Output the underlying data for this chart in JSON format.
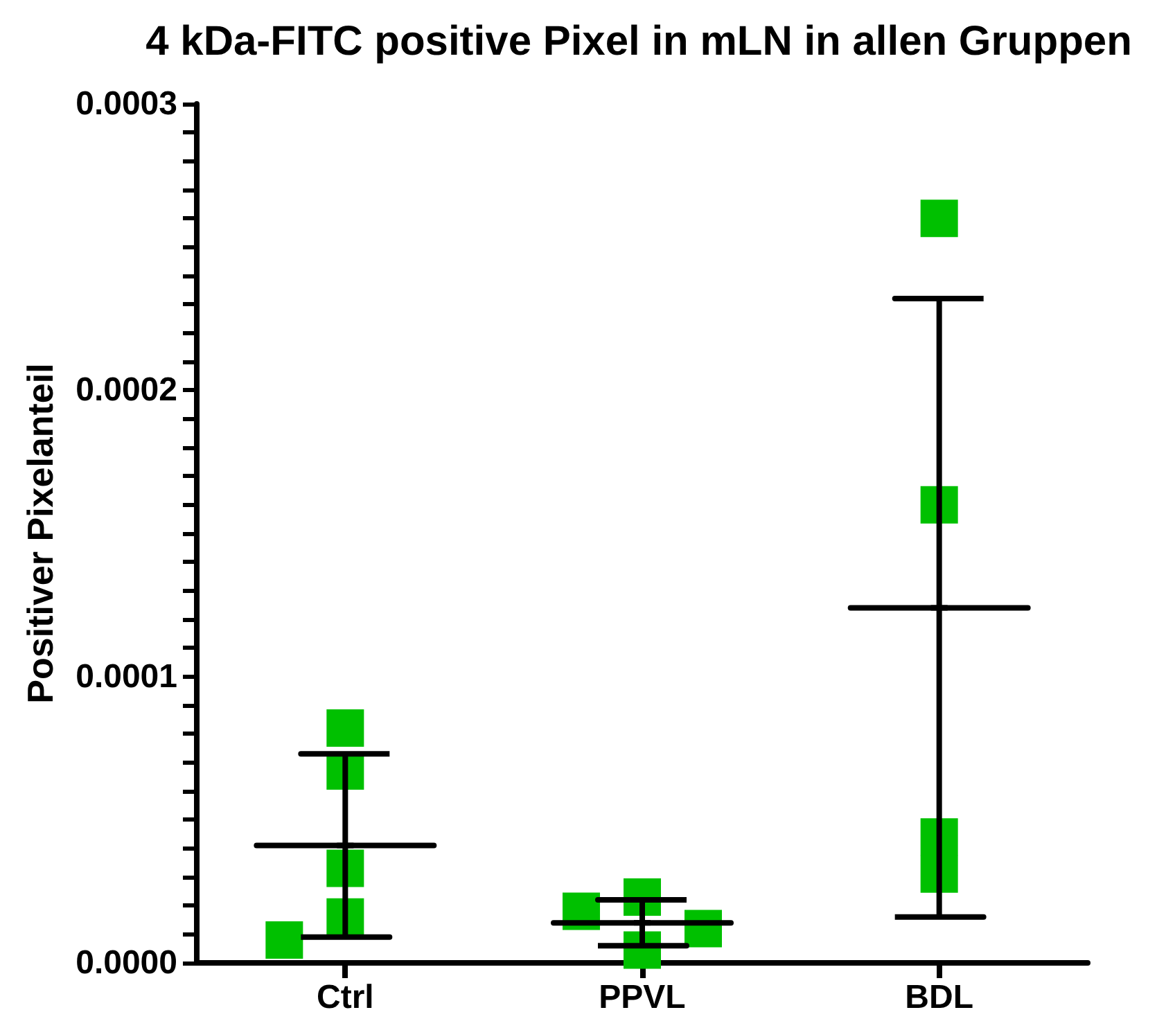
{
  "chart_data": {
    "type": "scatter",
    "title": "4 kDa-FITC positive Pixel in mLN in allen Gruppen",
    "ylabel": "Positiver Pixelanteil",
    "categories": [
      "Ctrl",
      "PPVL",
      "BDL"
    ],
    "series": [
      {
        "color": "#00c000",
        "marker": "square",
        "x": [
          "Ctrl",
          "Ctrl",
          "Ctrl",
          "Ctrl",
          "Ctrl",
          "PPVL",
          "PPVL",
          "PPVL",
          "PPVL",
          "BDL",
          "BDL",
          "BDL",
          "BDL"
        ],
        "values": [
          8.2e-05,
          6.7e-05,
          3.3e-05,
          1.6e-05,
          8e-06,
          2.3e-05,
          1.8e-05,
          1.2e-05,
          4.5e-06,
          0.00026,
          0.00016,
          4.4e-05,
          3.1e-05
        ]
      },
      {
        "color": "#000000",
        "x": [
          "Ctrl",
          "PPVL",
          "BDL"
        ],
        "values": [
          4.1e-05,
          1.4e-05,
          0.000124
        ],
        "errors": [
          [
            9e-06,
            7.3e-05
          ],
          [
            6e-06,
            2.2e-05
          ],
          [
            1.6e-05,
            0.000232
          ]
        ]
      }
    ],
    "ylim": [
      0,
      0.0003
    ],
    "yticks": [
      {
        "value": 0,
        "label": "0.0000"
      },
      {
        "value": 1e-05,
        "label": null
      },
      {
        "value": 2e-05,
        "label": null
      },
      {
        "value": 3e-05,
        "label": null
      },
      {
        "value": 4e-05,
        "label": null
      },
      {
        "value": 5e-05,
        "label": null
      },
      {
        "value": 6e-05,
        "label": null
      },
      {
        "value": 7e-05,
        "label": null
      },
      {
        "value": 8e-05,
        "label": null
      },
      {
        "value": 9e-05,
        "label": null
      },
      0.0001,
      {
        "value": 0.00011,
        "label": null
      },
      {
        "value": 0.00012,
        "label": null
      },
      {
        "value": 0.00013,
        "label": null
      },
      {
        "value": 0.00014,
        "label": null
      },
      {
        "value": 0.00015,
        "label": null
      },
      {
        "value": 0.00016,
        "label": null
      },
      {
        "value": 0.00017,
        "label": null
      },
      {
        "value": 0.00018,
        "label": null
      },
      {
        "value": 0.00019,
        "label": null
      },
      0.0002,
      {
        "value": 0.00021,
        "label": null
      },
      {
        "value": 0.00022,
        "label": null
      },
      {
        "value": 0.00023,
        "label": null
      },
      {
        "value": 0.00024,
        "label": null
      },
      {
        "value": 0.00025,
        "label": null
      },
      {
        "value": 0.00026,
        "label": null
      },
      {
        "value": 0.00027,
        "label": null
      },
      {
        "value": 0.00028,
        "label": null
      },
      {
        "value": 0.00029,
        "label": null
      },
      0.0003
    ]
  }
}
